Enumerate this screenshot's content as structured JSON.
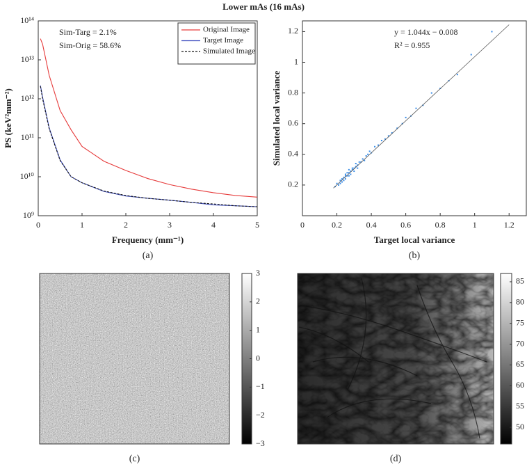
{
  "title": "Lower mAs (16 mAs)",
  "chart_data": [
    {
      "type": "line",
      "caption": "(a)",
      "xlabel": "Frequency (mm⁻¹)",
      "ylabel": "PS (keV²mm⁻²)",
      "annotations": [
        "Sim-Targ = 2.1%",
        "Sim-Orig = 58.6%"
      ],
      "yscale": "log",
      "legend": "upper right",
      "xlim": [
        0,
        5
      ],
      "xticks": [
        0,
        1,
        2,
        3,
        4,
        5
      ],
      "ylim": [
        1000000000,
        100000000000000
      ],
      "yticks": [
        {
          "value": 1000000000,
          "label": "10⁹"
        },
        {
          "value": 10000000000,
          "label": "10¹⁰"
        },
        {
          "value": 100000000000,
          "label": "10¹¹"
        },
        {
          "value": 1000000000000,
          "label": "10¹²"
        },
        {
          "value": 10000000000000,
          "label": "10¹³"
        },
        {
          "value": 100000000000000,
          "label": "10¹⁴"
        }
      ],
      "x": [
        0.05,
        0.1,
        0.25,
        0.5,
        0.75,
        1,
        1.5,
        2,
        2.5,
        3,
        3.5,
        4,
        4.5,
        5
      ],
      "series": [
        {
          "name": "Original Image",
          "color": "#e63b3b",
          "style": "solid",
          "values": [
            35000000000000,
            25000000000000,
            4000000000000,
            500000000000,
            160000000000,
            60000000000,
            25000000000,
            14500000000,
            9000000000,
            6300000000,
            4800000000,
            3900000000,
            3300000000,
            3000000000
          ]
        },
        {
          "name": "Target Image",
          "color": "#3f4ec0",
          "style": "solid",
          "values": [
            2200000000000,
            1100000000000,
            180000000000,
            27000000000,
            10000000000,
            7000000000,
            4200000000,
            3200000000,
            2800000000,
            2500000000,
            2200000000,
            1900000000,
            1800000000,
            1700000000
          ]
        },
        {
          "name": "Simulated Image",
          "color": "#111111",
          "style": "dashed",
          "values": [
            2100000000000,
            1000000000000,
            170000000000,
            26000000000,
            10000000000,
            7000000000,
            4300000000,
            3300000000,
            2800000000,
            2500000000,
            2200000000,
            2000000000,
            1800000000,
            1700000000
          ]
        }
      ]
    },
    {
      "type": "scatter",
      "caption": "(b)",
      "xlabel": "Target local variance",
      "ylabel": "Simulated local variance",
      "annotations": [
        "y = 1.044x − 0.008",
        "R² = 0.955"
      ],
      "color": "#3b8ee8",
      "xlim": [
        0,
        1.3
      ],
      "xticks": [
        0,
        0.2,
        0.4,
        0.6,
        0.8,
        1,
        1.2
      ],
      "ylim": [
        0,
        1.27
      ],
      "yticks": [
        0.2,
        0.4,
        0.6,
        0.8,
        1,
        1.2
      ],
      "fit": {
        "x": [
          0.18,
          1.2
        ],
        "y": [
          0.18,
          1.245
        ],
        "color": "#555555"
      },
      "x": [
        0.19,
        0.2,
        0.21,
        0.22,
        0.22,
        0.23,
        0.23,
        0.24,
        0.24,
        0.25,
        0.25,
        0.25,
        0.26,
        0.26,
        0.27,
        0.27,
        0.27,
        0.28,
        0.28,
        0.29,
        0.29,
        0.3,
        0.3,
        0.31,
        0.31,
        0.32,
        0.32,
        0.33,
        0.34,
        0.35,
        0.36,
        0.37,
        0.38,
        0.39,
        0.4,
        0.42,
        0.44,
        0.46,
        0.48,
        0.5,
        0.52,
        0.55,
        0.58,
        0.6,
        0.63,
        0.66,
        0.7,
        0.75,
        0.8,
        0.85,
        0.9,
        0.98,
        1.1
      ],
      "values": [
        0.19,
        0.21,
        0.2,
        0.23,
        0.21,
        0.24,
        0.22,
        0.25,
        0.23,
        0.26,
        0.24,
        0.27,
        0.26,
        0.28,
        0.28,
        0.26,
        0.3,
        0.29,
        0.27,
        0.3,
        0.31,
        0.31,
        0.29,
        0.32,
        0.34,
        0.33,
        0.31,
        0.35,
        0.35,
        0.37,
        0.36,
        0.39,
        0.4,
        0.42,
        0.41,
        0.45,
        0.46,
        0.49,
        0.5,
        0.52,
        0.54,
        0.57,
        0.6,
        0.64,
        0.65,
        0.7,
        0.72,
        0.8,
        0.83,
        0.88,
        0.92,
        1.05,
        1.2
      ]
    },
    {
      "type": "image",
      "caption": "(c)",
      "colorbar": {
        "lim": [
          -3,
          3
        ],
        "ticks": [
          {
            "value": -3,
            "label": "−3"
          },
          {
            "value": -2,
            "label": "−2"
          },
          {
            "value": -1,
            "label": "−1"
          },
          0,
          1,
          2,
          3
        ]
      }
    },
    {
      "type": "image",
      "caption": "(d)",
      "colorbar": {
        "lim": [
          46,
          87
        ],
        "ticks": [
          50,
          55,
          60,
          65,
          70,
          75,
          80,
          85
        ]
      }
    }
  ]
}
